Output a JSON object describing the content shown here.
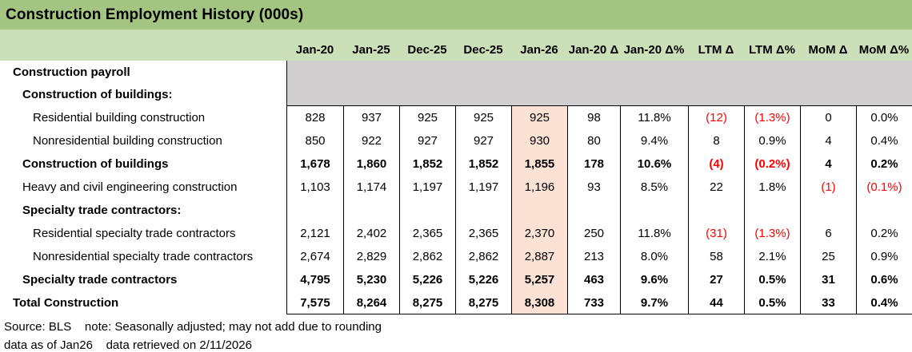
{
  "title": "Construction Employment History (000s)",
  "columns": [
    "Jan-20",
    "Jan-25",
    "Dec-25",
    "Dec-25",
    "Jan-26",
    "Jan-20 Δ",
    "Jan-20 Δ%",
    "LTM Δ",
    "LTM Δ%",
    "MoM Δ",
    "MoM Δ%"
  ],
  "highlight_column": "Jan-26",
  "rows": [
    {
      "label": "Construction payroll",
      "indent": 0,
      "bold": true,
      "band": true,
      "values": null,
      "red": []
    },
    {
      "label": "Construction of buildings:",
      "indent": 1,
      "bold": true,
      "band": true,
      "values": null,
      "red": []
    },
    {
      "label": "Residential building construction",
      "indent": 2,
      "bold": false,
      "band": false,
      "values": [
        "828",
        "937",
        "925",
        "925",
        "925",
        "98",
        "11.8%",
        "(12)",
        "(1.3%)",
        "0",
        "0.0%"
      ],
      "red": [
        7,
        8
      ]
    },
    {
      "label": "Nonresidential building construction",
      "indent": 2,
      "bold": false,
      "band": false,
      "values": [
        "850",
        "922",
        "927",
        "927",
        "930",
        "80",
        "9.4%",
        "8",
        "0.9%",
        "4",
        "0.4%"
      ],
      "red": []
    },
    {
      "label": "Construction of buildings",
      "indent": 1,
      "bold": true,
      "band": false,
      "values": [
        "1,678",
        "1,860",
        "1,852",
        "1,852",
        "1,855",
        "178",
        "10.6%",
        "(4)",
        "(0.2%)",
        "4",
        "0.2%"
      ],
      "red": [
        7,
        8
      ]
    },
    {
      "label": "Heavy and civil engineering construction",
      "indent": 1,
      "bold": false,
      "band": false,
      "values": [
        "1,103",
        "1,174",
        "1,197",
        "1,197",
        "1,196",
        "93",
        "8.5%",
        "22",
        "1.8%",
        "(1)",
        "(0.1%)"
      ],
      "red": [
        9,
        10
      ]
    },
    {
      "label": "Specialty trade contractors:",
      "indent": 1,
      "bold": true,
      "band": false,
      "values": [
        "",
        "",
        "",
        "",
        "",
        "",
        "",
        "",
        "",
        "",
        ""
      ],
      "red": []
    },
    {
      "label": "Residential specialty trade contractors",
      "indent": 2,
      "bold": false,
      "band": false,
      "values": [
        "2,121",
        "2,402",
        "2,365",
        "2,365",
        "2,370",
        "250",
        "11.8%",
        "(31)",
        "(1.3%)",
        "6",
        "0.2%"
      ],
      "red": [
        7,
        8
      ]
    },
    {
      "label": "Nonresidential specialty trade contractors",
      "indent": 2,
      "bold": false,
      "band": false,
      "values": [
        "2,674",
        "2,829",
        "2,862",
        "2,862",
        "2,887",
        "213",
        "8.0%",
        "58",
        "2.1%",
        "25",
        "0.9%"
      ],
      "red": []
    },
    {
      "label": "Specialty trade contractors",
      "indent": 1,
      "bold": true,
      "band": false,
      "values": [
        "4,795",
        "5,230",
        "5,226",
        "5,226",
        "5,257",
        "463",
        "9.6%",
        "27",
        "0.5%",
        "31",
        "0.6%"
      ],
      "red": []
    },
    {
      "label": "Total Construction",
      "indent": 0,
      "bold": true,
      "band": false,
      "values": [
        "7,575",
        "8,264",
        "8,275",
        "8,275",
        "8,308",
        "733",
        "9.7%",
        "44",
        "0.5%",
        "33",
        "0.4%"
      ],
      "red": []
    }
  ],
  "footer": {
    "line1": "Source: BLS    note: Seasonally adjusted; may not add due to rounding",
    "line2": "data as of Jan26    data retrieved on 2/11/2026"
  },
  "colors": {
    "title_bg": "#A3C581",
    "header_bg": "#CBDFB8",
    "band_bg": "#D0CECE",
    "highlight_bg": "#FBE2D4",
    "negative": "#FF0000"
  }
}
